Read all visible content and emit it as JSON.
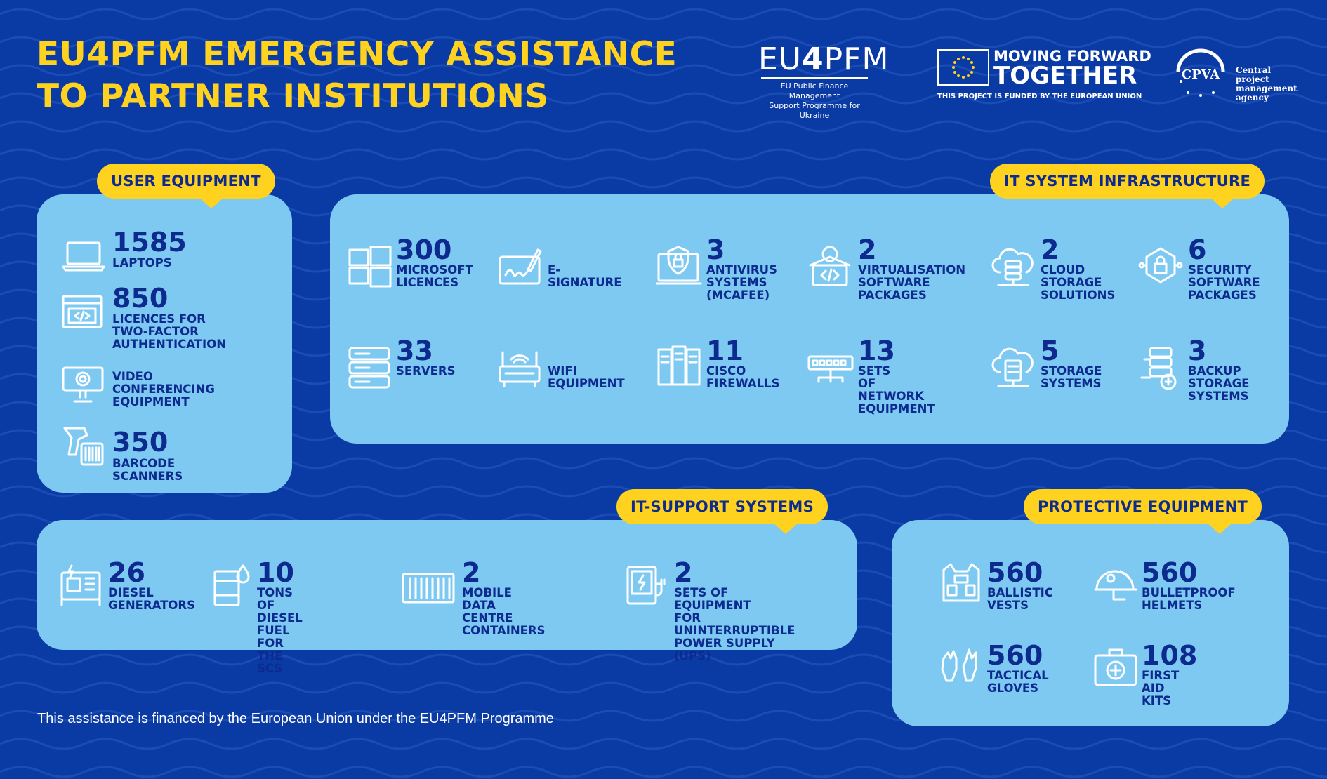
{
  "title": {
    "line1": "EU4PFM EMERGENCY ASSISTANCE",
    "line2": "TO PARTNER INSTITUTIONS"
  },
  "logos": {
    "eu4pfm": {
      "name_a": "EU",
      "name_b": "4",
      "name_c": "PFM",
      "sub1": "EU Public Finance Management",
      "sub2": "Support Programme for Ukraine"
    },
    "moving_forward": {
      "line1": "MOVING FORWARD",
      "line2": "TOGETHER",
      "line3": "THIS PROJECT IS FUNDED BY THE EUROPEAN UNION"
    },
    "cpva": {
      "mark": "CPVA",
      "line1": "Central project",
      "line2": "management",
      "line3": "agency"
    }
  },
  "user_equipment": {
    "tag": "USER EQUIPMENT",
    "items": [
      {
        "icon": "laptop-icon",
        "number": "1585",
        "label": "LAPTOPS"
      },
      {
        "icon": "code-window-icon",
        "number": "850",
        "label": "LICENCES FOR\nTWO-FACTOR\nAUTHENTICATION"
      },
      {
        "icon": "webcam-icon",
        "number": "",
        "label": "VIDEO\nCONFERENCING\nEQUIPMENT"
      },
      {
        "icon": "barcode-scanner-icon",
        "number": "350",
        "label": "BARCODE SCANNERS"
      }
    ]
  },
  "it_infrastructure": {
    "tag": "IT SYSTEM INFRASTRUCTURE",
    "items": [
      {
        "icon": "windows-icon",
        "number": "300",
        "label": "MICROSOFT\nLICENCES"
      },
      {
        "icon": "signature-icon",
        "number": "",
        "label": "E-SIGNATURE"
      },
      {
        "icon": "antivirus-icon",
        "number": "3",
        "label": "ANTIVIRUS\nSYSTEMS\n(MCAFEE)"
      },
      {
        "icon": "virtualisation-icon",
        "number": "2",
        "label": "VIRTUALISATION\nSOFTWARE\nPACKAGES"
      },
      {
        "icon": "cloud-storage-icon",
        "number": "2",
        "label": "CLOUD\nSTORAGE\nSOLUTIONS"
      },
      {
        "icon": "security-lock-icon",
        "number": "6",
        "label": "SECURITY\nSOFTWARE\nPACKAGES"
      },
      {
        "icon": "server-icon",
        "number": "33",
        "label": "SERVERS"
      },
      {
        "icon": "wifi-router-icon",
        "number": "",
        "label": "WIFI\nEQUIPMENT"
      },
      {
        "icon": "firewall-icon",
        "number": "11",
        "label": "CISCO\nFIREWALLS"
      },
      {
        "icon": "network-switch-icon",
        "number": "13",
        "label": "SETS\nOF NETWORK\nEQUIPMENT"
      },
      {
        "icon": "storage-cloud-icon",
        "number": "5",
        "label": "STORAGE\nSYSTEMS"
      },
      {
        "icon": "backup-storage-icon",
        "number": "3",
        "label": "BACKUP\nSTORAGE\nSYSTEMS"
      }
    ]
  },
  "it_support": {
    "tag": "IT-SUPPORT SYSTEMS",
    "items": [
      {
        "icon": "generator-icon",
        "number": "26",
        "label": "DIESEL\nGENERATORS"
      },
      {
        "icon": "fuel-barrel-icon",
        "number": "10",
        "label": "TONS OF DIESEL\nFUEL FOR THE SCS"
      },
      {
        "icon": "container-icon",
        "number": "2",
        "label": "MOBILE DATA\nCENTRE CONTAINERS"
      },
      {
        "icon": "ups-icon",
        "number": "2",
        "label": "SETS OF EQUIPMENT\nFOR UNINTERRUPTIBLE\nPOWER SUPPLY (UPS)"
      }
    ]
  },
  "protective": {
    "tag": "PROTECTIVE EQUIPMENT",
    "items": [
      {
        "icon": "ballistic-vest-icon",
        "number": "560",
        "label": "BALLISTIC\nVESTS"
      },
      {
        "icon": "helmet-icon",
        "number": "560",
        "label": "BULLETPROOF\nHELMETS"
      },
      {
        "icon": "gloves-icon",
        "number": "560",
        "label": "TACTICAL\nGLOVES"
      },
      {
        "icon": "first-aid-icon",
        "number": "108",
        "label": "FIRST AID\nKITS"
      }
    ]
  },
  "footer": "This assistance is financed by the European Union under the EU4PFM Programme",
  "colors": {
    "background": "#0a3aa4",
    "panel": "#7ec9f2",
    "accent": "#ffd21f",
    "text": "#0d2a8f"
  }
}
